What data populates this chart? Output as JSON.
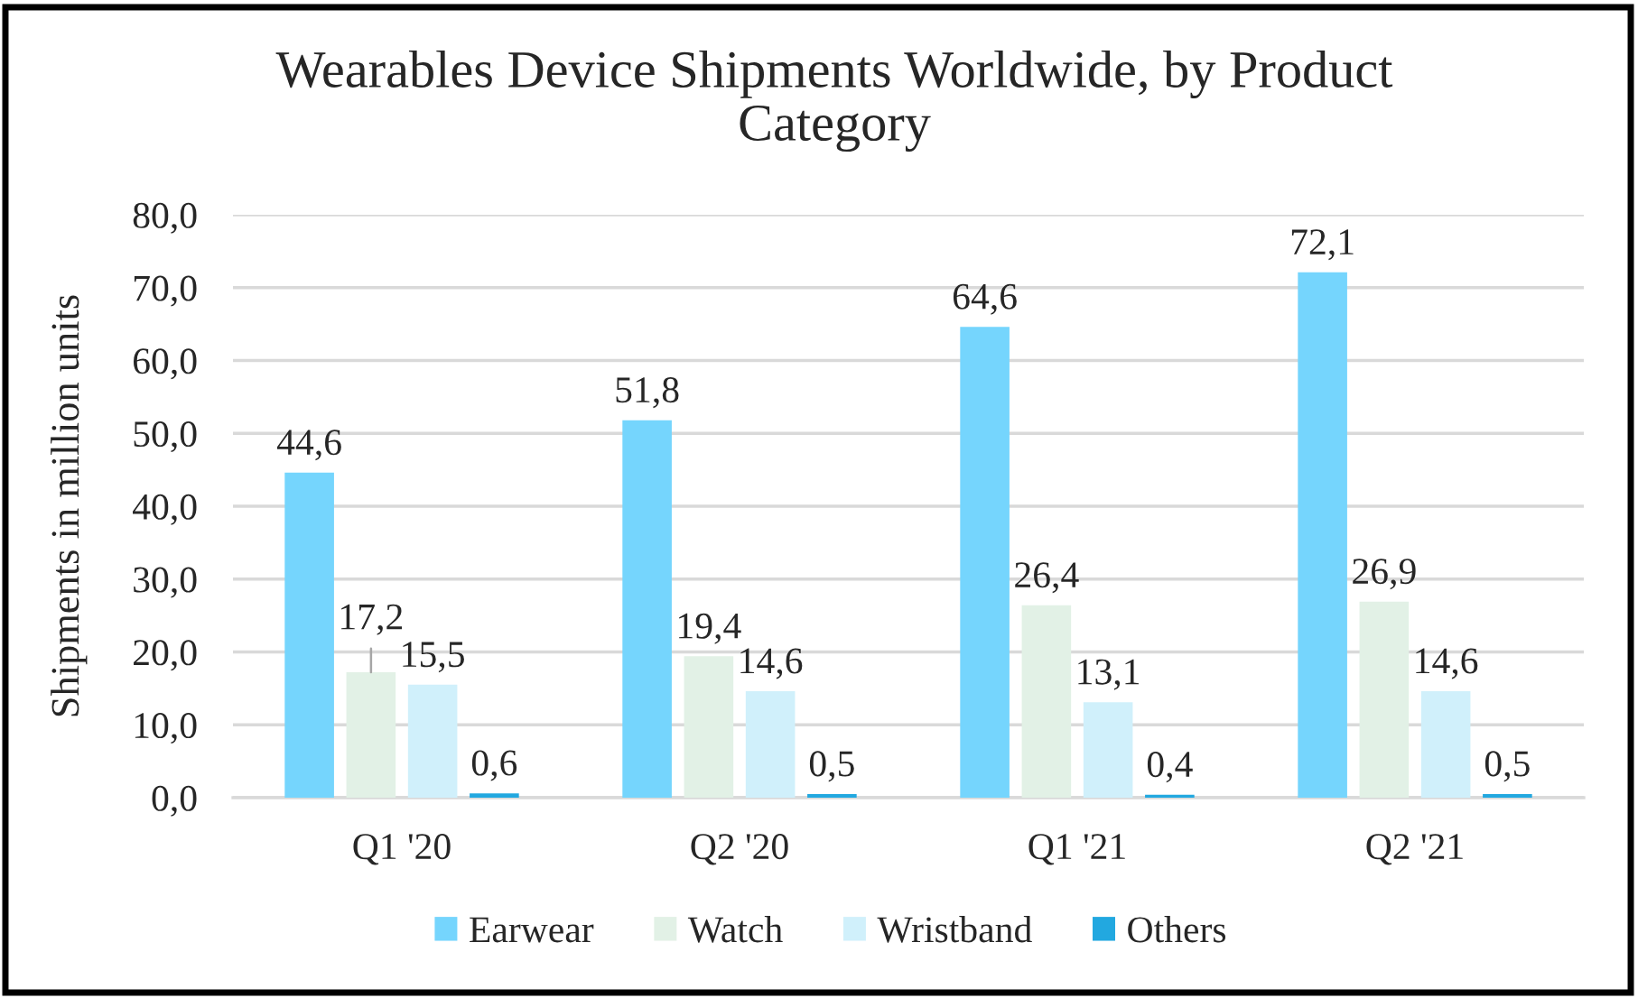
{
  "chart_data": {
    "type": "bar",
    "title": "Wearables Device Shipments Worldwide, by Product\nCategory",
    "ylabel": "Shipments in million units",
    "categories": [
      "Q1 '20",
      "Q2 '20",
      "Q1 '21",
      "Q2 '21"
    ],
    "series": [
      {
        "name": "Earwear",
        "color": "#75d5fd",
        "values": [
          44.6,
          51.8,
          64.6,
          72.1
        ],
        "value_labels": [
          "44,6",
          "51,8",
          "64,6",
          "72,1"
        ]
      },
      {
        "name": "Watch",
        "color": "#e2f1e6",
        "values": [
          17.2,
          19.4,
          26.4,
          26.9
        ],
        "value_labels": [
          "17,2",
          "19,4",
          "26,4",
          "26,9"
        ]
      },
      {
        "name": "Wristband",
        "color": "#d0f0fb",
        "values": [
          15.5,
          14.6,
          13.1,
          14.6
        ],
        "value_labels": [
          "15,5",
          "14,6",
          "13,1",
          "14,6"
        ]
      },
      {
        "name": "Others",
        "color": "#22a8e0",
        "values": [
          0.6,
          0.5,
          0.4,
          0.5
        ],
        "value_labels": [
          "0,6",
          "0,5",
          "0,4",
          "0,5"
        ]
      }
    ],
    "ylim": [
      0,
      80
    ],
    "yticks": [
      {
        "value": 0,
        "label": "0,0"
      },
      {
        "value": 10,
        "label": "10,0"
      },
      {
        "value": 20,
        "label": "20,0"
      },
      {
        "value": 30,
        "label": "30,0"
      },
      {
        "value": 40,
        "label": "40,0"
      },
      {
        "value": 50,
        "label": "50,0"
      },
      {
        "value": 60,
        "label": "60,0"
      },
      {
        "value": 70,
        "label": "70,0"
      },
      {
        "value": 80,
        "label": "80,0"
      }
    ],
    "grid": "y",
    "legend": "bottom"
  }
}
